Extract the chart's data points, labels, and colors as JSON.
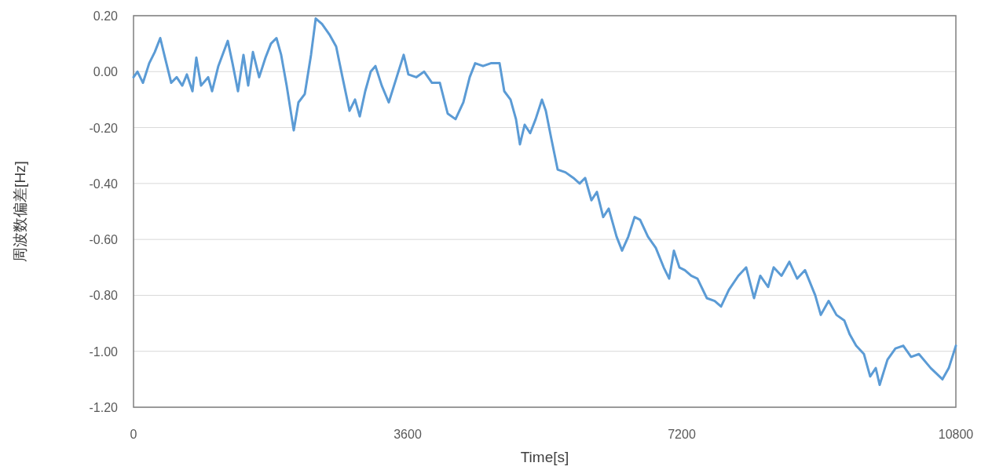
{
  "chart_data": {
    "type": "line",
    "xlabel": "Time[s]",
    "ylabel": "周波数偏差[Hz]",
    "grid": "y",
    "marker": "none",
    "line_style": "solid",
    "xlim": [
      0,
      10800
    ],
    "xticks": [
      0,
      3600,
      7200,
      10800
    ],
    "ylim": [
      -1.2,
      0.2
    ],
    "yticks": [
      {
        "value": 0.2,
        "label": "0.20"
      },
      {
        "value": 0,
        "label": "0.00"
      },
      {
        "value": -0.2,
        "label": "-0.20"
      },
      {
        "value": -0.4,
        "label": "-0.40"
      },
      {
        "value": -0.6,
        "label": "-0.60"
      },
      {
        "value": -0.8,
        "label": "-0.80"
      },
      {
        "value": -1.0,
        "label": "-1.00"
      },
      {
        "value": -1.2,
        "label": "-1.20"
      }
    ],
    "series": [
      {
        "color": "#5b9bd5",
        "x": [
          0,
          52,
          124,
          206,
          279,
          351,
          413,
          495,
          567,
          640,
          701,
          774,
          825,
          887,
          980,
          1032,
          1114,
          1238,
          1300,
          1372,
          1444,
          1506,
          1568,
          1650,
          1733,
          1805,
          1877,
          1939,
          2011,
          2104,
          2166,
          2249,
          2331,
          2393,
          2476,
          2579,
          2661,
          2744,
          2837,
          2909,
          2971,
          3043,
          3115,
          3177,
          3260,
          3352,
          3456,
          3548,
          3610,
          3713,
          3817,
          3920,
          4023,
          4126,
          4229,
          4332,
          4415,
          4487,
          4590,
          4693,
          4807,
          4869,
          4951,
          5023,
          5075,
          5137,
          5209,
          5281,
          5364,
          5415,
          5487,
          5570,
          5673,
          5776,
          5859,
          5931,
          6014,
          6086,
          6168,
          6241,
          6344,
          6416,
          6498,
          6581,
          6653,
          6756,
          6859,
          6963,
          7035,
          7097,
          7169,
          7241,
          7324,
          7406,
          7530,
          7633,
          7716,
          7819,
          7943,
          8046,
          8149,
          8231,
          8334,
          8407,
          8510,
          8613,
          8716,
          8819,
          8953,
          9026,
          9129,
          9232,
          9335,
          9407,
          9490,
          9593,
          9675,
          9748,
          9799,
          9902,
          10006,
          10109,
          10212,
          10315,
          10470,
          10624,
          10707,
          10800
        ],
        "values": [
          -0.02,
          0.0,
          -0.04,
          0.03,
          0.07,
          0.12,
          0.05,
          -0.04,
          -0.02,
          -0.05,
          -0.01,
          -0.07,
          0.05,
          -0.05,
          -0.02,
          -0.07,
          0.02,
          0.11,
          0.03,
          -0.07,
          0.06,
          -0.05,
          0.07,
          -0.02,
          0.05,
          0.1,
          0.12,
          0.06,
          -0.05,
          -0.21,
          -0.11,
          -0.08,
          0.06,
          0.19,
          0.17,
          0.13,
          0.09,
          -0.02,
          -0.14,
          -0.1,
          -0.16,
          -0.07,
          0.0,
          0.02,
          -0.05,
          -0.11,
          -0.02,
          0.06,
          -0.01,
          -0.02,
          0.0,
          -0.04,
          -0.04,
          -0.15,
          -0.17,
          -0.11,
          -0.02,
          0.03,
          0.02,
          0.03,
          0.03,
          -0.07,
          -0.1,
          -0.17,
          -0.26,
          -0.19,
          -0.22,
          -0.17,
          -0.1,
          -0.14,
          -0.24,
          -0.35,
          -0.36,
          -0.38,
          -0.4,
          -0.38,
          -0.46,
          -0.43,
          -0.52,
          -0.49,
          -0.59,
          -0.64,
          -0.59,
          -0.52,
          -0.53,
          -0.59,
          -0.63,
          -0.7,
          -0.74,
          -0.64,
          -0.7,
          -0.71,
          -0.73,
          -0.74,
          -0.81,
          -0.82,
          -0.84,
          -0.78,
          -0.73,
          -0.7,
          -0.81,
          -0.73,
          -0.77,
          -0.7,
          -0.73,
          -0.68,
          -0.74,
          -0.71,
          -0.8,
          -0.87,
          -0.82,
          -0.87,
          -0.89,
          -0.94,
          -0.98,
          -1.01,
          -1.09,
          -1.06,
          -1.12,
          -1.03,
          -0.99,
          -0.98,
          -1.02,
          -1.01,
          -1.06,
          -1.1,
          -1.06,
          -0.98
        ]
      }
    ]
  }
}
